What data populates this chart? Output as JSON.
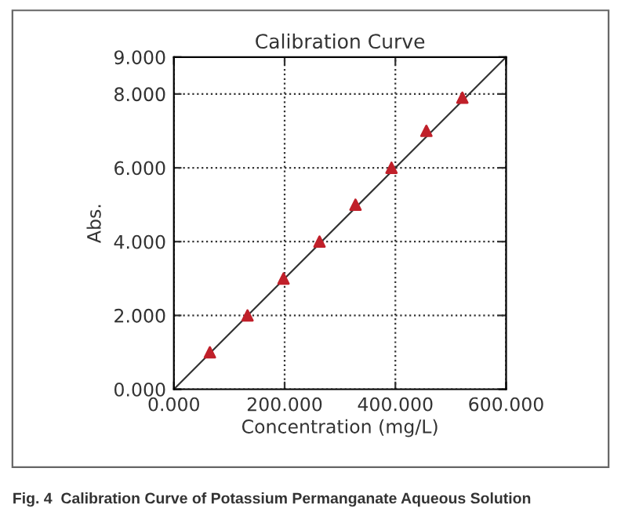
{
  "chart_data": {
    "type": "scatter",
    "title": "Calibration Curve",
    "xlabel": "Concentration (mg/L)",
    "ylabel": "Abs.",
    "annotations": [
      "Fig. 4  Calibration Curve of Potassium Permanganate Aqueous Solution"
    ],
    "series": [
      {
        "color": "#c0202a",
        "marker": "triangle",
        "x": [
          65,
          133,
          198,
          263,
          328,
          393,
          456,
          521
        ],
        "values": [
          1.0,
          2.0,
          3.0,
          4.0,
          5.0,
          6.0,
          7.0,
          7.9
        ]
      },
      {
        "type": "line",
        "color": "#333333",
        "marker": "none",
        "line_style": "solid",
        "x": [
          0,
          600
        ],
        "values": [
          0,
          9
        ]
      }
    ],
    "xlim": [
      0,
      600
    ],
    "ylim": [
      0,
      9
    ],
    "xticks": [
      {
        "value": 0,
        "label": "0.000"
      },
      {
        "value": 200,
        "label": "200.000"
      },
      {
        "value": 400,
        "label": "400.000"
      },
      {
        "value": 600,
        "label": "600.000"
      }
    ],
    "yticks": [
      {
        "value": 0,
        "label": "0.000"
      },
      {
        "value": 2,
        "label": "2.000"
      },
      {
        "value": 4,
        "label": "4.000"
      },
      {
        "value": 6,
        "label": "6.000"
      },
      {
        "value": 8,
        "label": "8.000"
      },
      {
        "value": 9,
        "label": "9.000"
      }
    ],
    "grid": true
  }
}
